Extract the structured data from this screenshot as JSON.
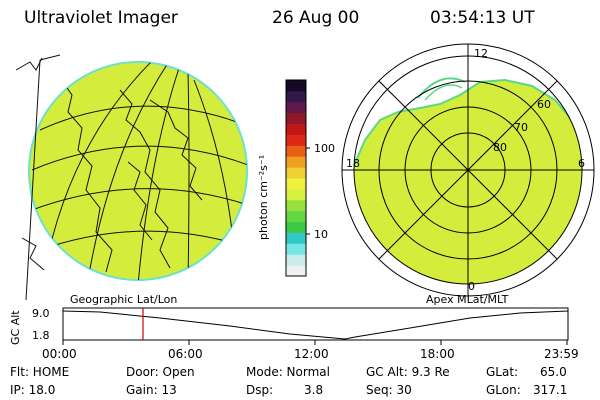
{
  "header": {
    "title": "Ultraviolet Imager",
    "date": "26 Aug 00",
    "time": "03:54:13 UT"
  },
  "colorbar": {
    "unit": "photon cm⁻²s⁻¹",
    "ticks": [
      "100",
      "10"
    ],
    "colors": [
      "#f0f0f0",
      "#c8ecec",
      "#78e6e6",
      "#30c8c8",
      "#40c848",
      "#60d840",
      "#98e040",
      "#d8f040",
      "#f0f040",
      "#f0d030",
      "#f0a020",
      "#e86018",
      "#e02818",
      "#c01818",
      "#901828",
      "#601848",
      "#301848",
      "#180828"
    ]
  },
  "panels": {
    "left_label": "Geographic Lat/Lon",
    "right_label": "Apex MLat/MLT"
  },
  "polar_labels": {
    "mlt_top": "12",
    "mlt_left": "18",
    "mlt_right": "6",
    "mlt_bottom": "0",
    "lat_60": "60",
    "lat_70": "70",
    "lat_80": "80"
  },
  "altitude_plot": {
    "ylabel": "GC Alt",
    "ymax": "9.0",
    "ymin": "1.8",
    "xticks": [
      "00:00",
      "06:00",
      "12:00",
      "18:00",
      "23:59"
    ],
    "current_time_marker": "03:54"
  },
  "info": {
    "flt": "Flt: HOME",
    "ip": "IP: 18.0",
    "door": "Door: Open",
    "gain": "Gain: 13",
    "mode": "Mode: Normal",
    "dsp_label": "Dsp:",
    "dsp_value": "3.8",
    "gcalt": "GC Alt: 9.3 Re",
    "seq": "Seq: 30",
    "glat_label": "GLat:",
    "glat_value": "65.0",
    "glon_label": "GLon:",
    "glon_value": "317.1"
  }
}
